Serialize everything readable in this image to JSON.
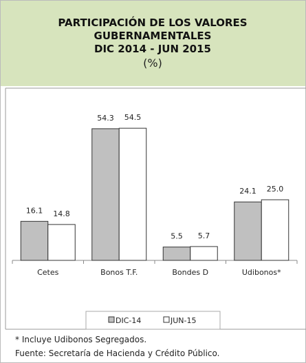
{
  "chart_data": {
    "type": "bar",
    "title": [
      "PARTICIPACIÓN DE LOS VALORES",
      "GUBERNAMENTALES",
      "DIC 2014 - JUN 2015"
    ],
    "subtitle": "(%)",
    "categories": [
      "Cetes",
      "Bonos T.F.",
      "Bondes D",
      "Udibonos*"
    ],
    "series": [
      {
        "name": "DIC-14",
        "color": "#c0c0c0",
        "values": [
          16.1,
          54.3,
          5.5,
          24.1
        ],
        "value_labels": [
          "16.1",
          "54.3",
          "5.5",
          "24.1"
        ]
      },
      {
        "name": "JUN-15",
        "color": "#ffffff",
        "values": [
          14.8,
          54.5,
          5.7,
          25.0
        ],
        "value_labels": [
          "14.8",
          "54.5",
          "5.7",
          "25.0"
        ]
      }
    ],
    "notes": [
      "* Incluye Udibonos Segregados.",
      "Fuente: Secretaría de Hacienda y Crédito Público."
    ]
  }
}
